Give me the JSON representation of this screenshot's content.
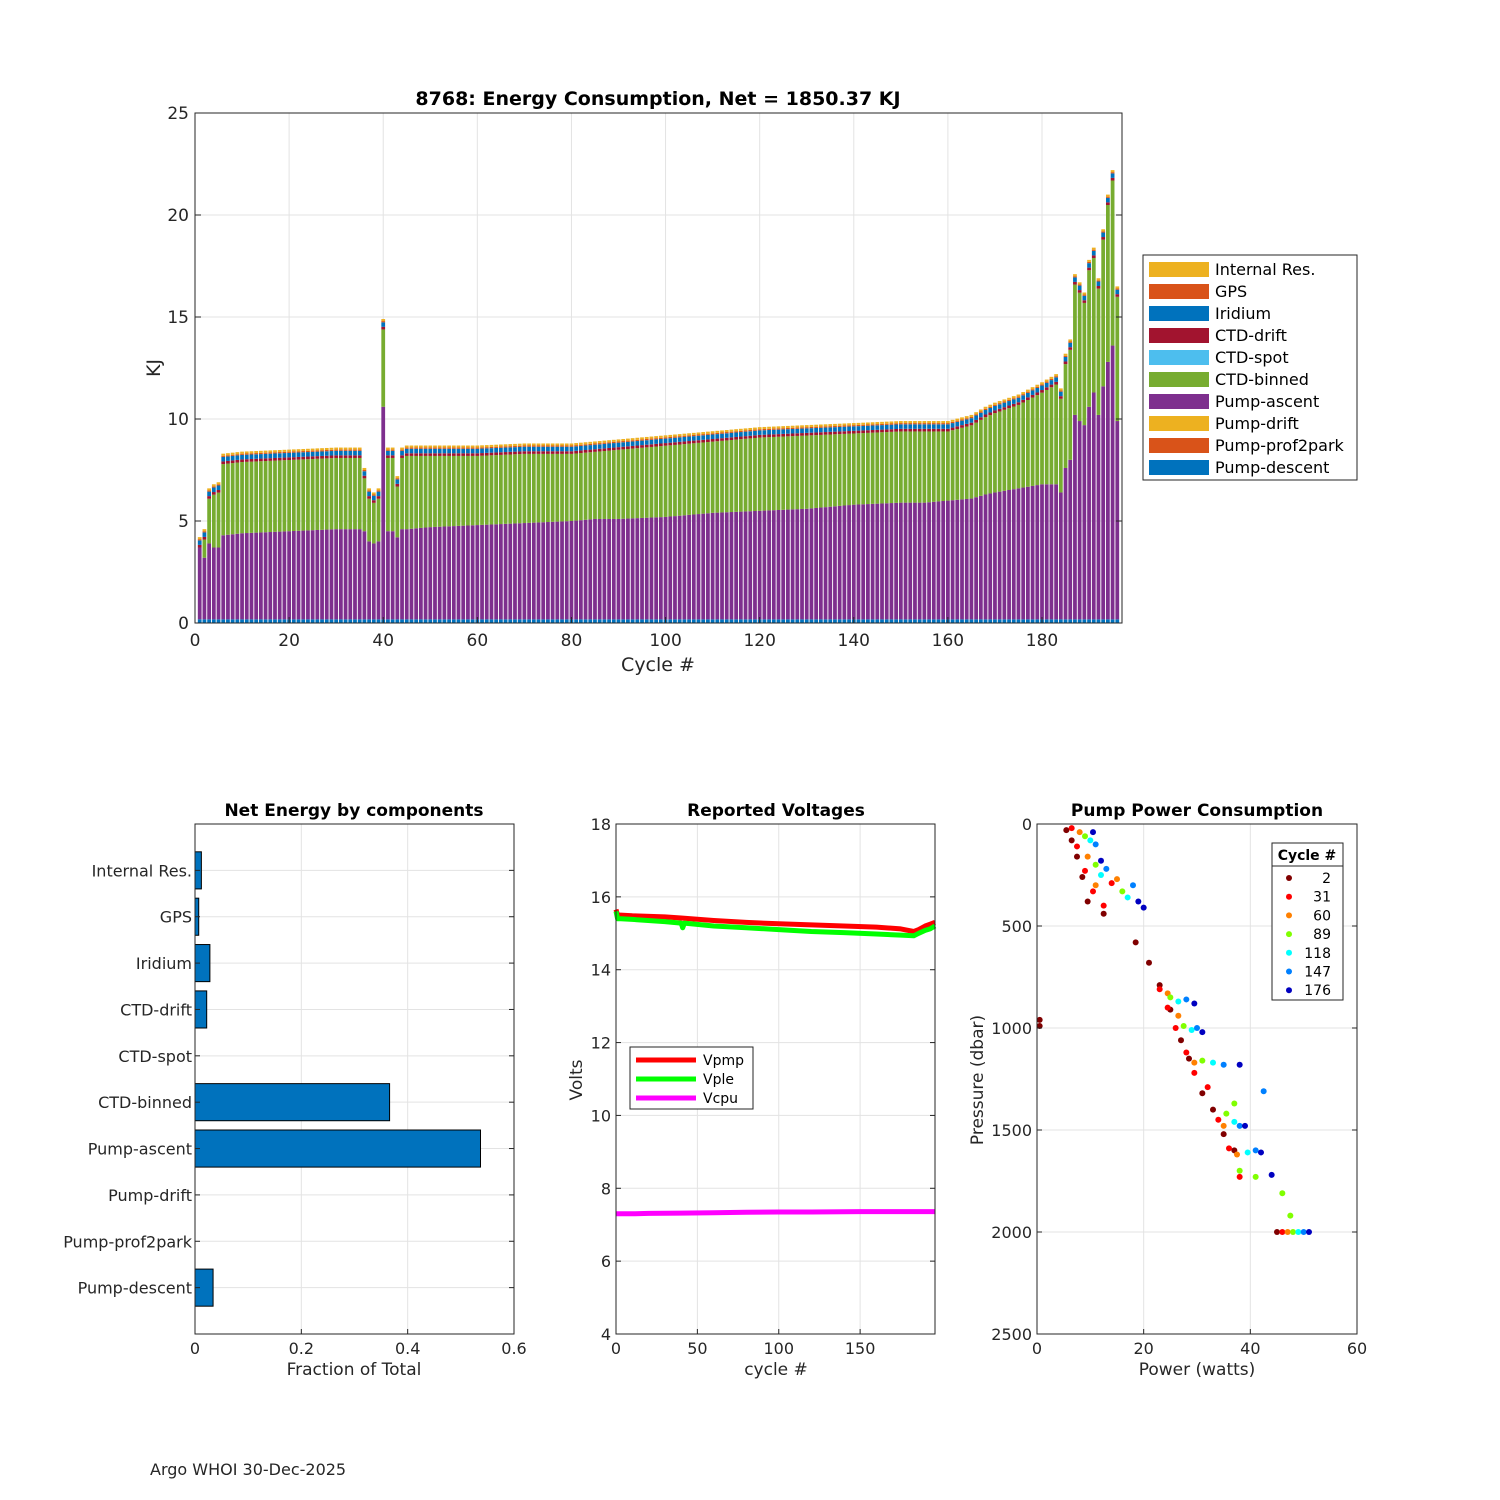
{
  "footer": "Argo WHOI 30-Dec-2025",
  "colors": {
    "Internal Res.": "#EDB120",
    "GPS": "#D95319",
    "Iridium": "#0072BD",
    "CTD-drift": "#A2142F",
    "CTD-spot": "#4DBEEE",
    "CTD-binned": "#77AC30",
    "Pump-ascent": "#7E2F8E",
    "Pump-drift": "#EDB120",
    "Pump-prof2park": "#D95319",
    "Pump-descent": "#0072BD",
    "grid": "#e3e3e3",
    "axis": "#262626"
  },
  "chart_data": [
    {
      "id": "energy",
      "type": "bar",
      "stacked": true,
      "title": "8768: Energy Consumption,  Net = 1850.37 KJ",
      "xlabel": "Cycle #",
      "ylabel": "KJ",
      "xlim": [
        0,
        197
      ],
      "ylim": [
        0,
        25
      ],
      "xticks": [
        0,
        20,
        40,
        60,
        80,
        100,
        120,
        140,
        160,
        180
      ],
      "yticks": [
        0,
        5,
        10,
        15,
        20,
        25
      ],
      "grid": true,
      "legend_position": "outside-right",
      "legend": [
        "Internal Res.",
        "GPS",
        "Iridium",
        "CTD-drift",
        "CTD-spot",
        "CTD-binned",
        "Pump-ascent",
        "Pump-drift",
        "Pump-prof2park",
        "Pump-descent"
      ],
      "cycles_range": [
        1,
        196
      ],
      "anchor_cycles": [
        1,
        2,
        3,
        4,
        5,
        6,
        10,
        20,
        30,
        35,
        36,
        37,
        38,
        39,
        40,
        41,
        42,
        43,
        44,
        45,
        50,
        60,
        70,
        80,
        85,
        90,
        100,
        110,
        120,
        130,
        140,
        150,
        155,
        160,
        165,
        168,
        170,
        175,
        180,
        183,
        184,
        185,
        186,
        187,
        188,
        189,
        190,
        191,
        192,
        193,
        194,
        195,
        196
      ],
      "anchor_total_kj": [
        4.1,
        4.6,
        6.6,
        6.8,
        6.9,
        8.3,
        8.4,
        8.5,
        8.6,
        8.6,
        7.6,
        6.6,
        6.4,
        6.6,
        14.9,
        8.6,
        8.6,
        7.2,
        8.6,
        8.7,
        8.7,
        8.7,
        8.8,
        8.8,
        8.9,
        9.0,
        9.2,
        9.4,
        9.6,
        9.7,
        9.8,
        9.9,
        9.9,
        9.9,
        10.2,
        10.6,
        10.8,
        11.2,
        11.8,
        12.2,
        11.5,
        13.2,
        13.9,
        17.1,
        16.7,
        16.2,
        17.8,
        18.4,
        16.9,
        19.3,
        21.0,
        22.2,
        16.5
      ],
      "anchor_pump_ascent_kj": [
        3.7,
        3.2,
        3.9,
        3.7,
        3.7,
        4.3,
        4.4,
        4.5,
        4.6,
        4.6,
        4.5,
        4.0,
        3.9,
        4.0,
        10.6,
        4.5,
        4.5,
        4.2,
        4.6,
        4.6,
        4.7,
        4.8,
        4.9,
        5.0,
        5.1,
        5.1,
        5.2,
        5.4,
        5.5,
        5.6,
        5.8,
        5.9,
        5.9,
        6.0,
        6.1,
        6.3,
        6.4,
        6.6,
        6.8,
        6.8,
        6.4,
        7.6,
        8.0,
        10.2,
        9.9,
        9.7,
        10.6,
        11.3,
        10.2,
        11.6,
        12.8,
        13.6,
        9.9
      ],
      "pump_descent_kj": 0.18,
      "ctd_drift_kj": 0.13,
      "iridium_kj": 0.22,
      "gps_kj": 0.06,
      "internal_res_kj": 0.1
    },
    {
      "id": "components",
      "type": "bar",
      "orientation": "horizontal",
      "title": "Net Energy by components",
      "xlabel": "Fraction of Total",
      "xlim": [
        0,
        0.6
      ],
      "xticks": [
        0,
        0.2,
        0.4,
        0.6
      ],
      "xtick_labels": [
        "0",
        "0.2",
        "0.4",
        "0.6"
      ],
      "categories": [
        "Internal Res.",
        "GPS",
        "Iridium",
        "CTD-drift",
        "CTD-spot",
        "CTD-binned",
        "Pump-ascent",
        "Pump-drift",
        "Pump-prof2park",
        "Pump-descent"
      ],
      "values": [
        0.012,
        0.007,
        0.028,
        0.022,
        0.0,
        0.366,
        0.537,
        0.0,
        0.0,
        0.034
      ],
      "grid": true
    },
    {
      "id": "voltages",
      "type": "line",
      "title": "Reported Voltages",
      "xlabel": "cycle #",
      "ylabel": "Volts",
      "xlim": [
        0,
        196
      ],
      "ylim": [
        4,
        18
      ],
      "xticks": [
        0,
        50,
        100,
        150
      ],
      "yticks": [
        4,
        6,
        8,
        10,
        12,
        14,
        16,
        18
      ],
      "legend_position": "left",
      "series": [
        {
          "name": "Vpmp",
          "color": "#ff0000",
          "x": [
            0,
            1,
            3,
            10,
            30,
            40,
            60,
            80,
            100,
            120,
            140,
            160,
            175,
            183,
            186,
            190,
            193,
            196
          ],
          "y": [
            15.65,
            15.5,
            15.5,
            15.48,
            15.45,
            15.42,
            15.35,
            15.3,
            15.26,
            15.23,
            15.2,
            15.17,
            15.12,
            15.05,
            15.1,
            15.2,
            15.25,
            15.3
          ]
        },
        {
          "name": "Vple",
          "color": "#00ff00",
          "x": [
            0,
            1,
            3,
            10,
            30,
            40,
            41,
            42,
            60,
            80,
            100,
            120,
            140,
            160,
            175,
            183,
            186,
            190,
            193,
            196
          ],
          "y": [
            15.6,
            15.4,
            15.4,
            15.38,
            15.32,
            15.28,
            15.15,
            15.28,
            15.2,
            15.15,
            15.1,
            15.05,
            15.02,
            14.98,
            14.95,
            14.93,
            15.0,
            15.08,
            15.12,
            15.2
          ]
        },
        {
          "name": "Vcpu",
          "color": "#ff00ff",
          "x": [
            0,
            10,
            20,
            40,
            60,
            80,
            100,
            120,
            150,
            180,
            196
          ],
          "y": [
            7.3,
            7.3,
            7.31,
            7.32,
            7.33,
            7.34,
            7.35,
            7.35,
            7.36,
            7.36,
            7.36
          ]
        }
      ]
    },
    {
      "id": "pump_power",
      "type": "scatter",
      "title": "Pump Power Consumption",
      "xlabel": "Power (watts)",
      "ylabel": "Pressure (dbar)",
      "xlim": [
        0,
        60
      ],
      "ylim": [
        0,
        2500
      ],
      "y_reversed": true,
      "xticks": [
        0,
        20,
        40,
        60
      ],
      "yticks": [
        0,
        500,
        1000,
        1500,
        2000,
        2500
      ],
      "legend_title": "Cycle #",
      "legend_position": "top-right",
      "series": [
        {
          "name": "2",
          "color": "#800000",
          "points": [
            [
              5.5,
              30
            ],
            [
              6.5,
              80
            ],
            [
              7.5,
              160
            ],
            [
              8.5,
              260
            ],
            [
              9.5,
              380
            ],
            [
              12.5,
              440
            ],
            [
              18.5,
              580
            ],
            [
              21,
              680
            ],
            [
              23,
              790
            ],
            [
              25,
              910
            ],
            [
              27,
              1060
            ],
            [
              28.5,
              1150
            ],
            [
              31,
              1320
            ],
            [
              33,
              1400
            ],
            [
              35,
              1520
            ],
            [
              37,
              1600
            ],
            [
              45,
              2000
            ],
            [
              0.5,
              960
            ],
            [
              0.5,
              990
            ]
          ]
        },
        {
          "name": "31",
          "color": "#ff0000",
          "points": [
            [
              6.5,
              20
            ],
            [
              7.5,
              110
            ],
            [
              9,
              230
            ],
            [
              10.5,
              330
            ],
            [
              12.5,
              400
            ],
            [
              14,
              290
            ],
            [
              23,
              810
            ],
            [
              24.5,
              900
            ],
            [
              26,
              1000
            ],
            [
              28,
              1120
            ],
            [
              29.5,
              1220
            ],
            [
              32,
              1290
            ],
            [
              34,
              1450
            ],
            [
              36,
              1590
            ],
            [
              38,
              1730
            ],
            [
              46,
              2000
            ]
          ]
        },
        {
          "name": "60",
          "color": "#ff8000",
          "points": [
            [
              8,
              40
            ],
            [
              9.5,
              160
            ],
            [
              11,
              300
            ],
            [
              15,
              270
            ],
            [
              24.5,
              830
            ],
            [
              26.5,
              940
            ],
            [
              29.5,
              1170
            ],
            [
              35,
              1480
            ],
            [
              37.5,
              1620
            ],
            [
              47,
              2000
            ]
          ]
        },
        {
          "name": "89",
          "color": "#80ff00",
          "points": [
            [
              9,
              60
            ],
            [
              11,
              200
            ],
            [
              16,
              330
            ],
            [
              25,
              850
            ],
            [
              27.5,
              990
            ],
            [
              31,
              1160
            ],
            [
              35.5,
              1420
            ],
            [
              38,
              1700
            ],
            [
              41,
              1730
            ],
            [
              46,
              1810
            ],
            [
              47.5,
              1920
            ],
            [
              48,
              2000
            ],
            [
              37,
              1370
            ]
          ]
        },
        {
          "name": "118",
          "color": "#00ffff",
          "points": [
            [
              10,
              80
            ],
            [
              12,
              250
            ],
            [
              17,
              360
            ],
            [
              26.5,
              870
            ],
            [
              29,
              1010
            ],
            [
              33,
              1170
            ],
            [
              37,
              1460
            ],
            [
              39.5,
              1610
            ],
            [
              49,
              2000
            ]
          ]
        },
        {
          "name": "147",
          "color": "#0080ff",
          "points": [
            [
              11,
              100
            ],
            [
              13,
              220
            ],
            [
              18,
              300
            ],
            [
              28,
              860
            ],
            [
              30,
              1000
            ],
            [
              35,
              1180
            ],
            [
              38,
              1480
            ],
            [
              41,
              1600
            ],
            [
              42.5,
              1310
            ],
            [
              50,
              2000
            ]
          ]
        },
        {
          "name": "176",
          "color": "#0000c0",
          "points": [
            [
              10.5,
              40
            ],
            [
              12,
              180
            ],
            [
              19,
              380
            ],
            [
              20,
              410
            ],
            [
              29.5,
              880
            ],
            [
              31,
              1020
            ],
            [
              38,
              1180
            ],
            [
              39,
              1480
            ],
            [
              42,
              1610
            ],
            [
              44,
              1720
            ],
            [
              51,
              2000
            ]
          ]
        }
      ]
    }
  ]
}
